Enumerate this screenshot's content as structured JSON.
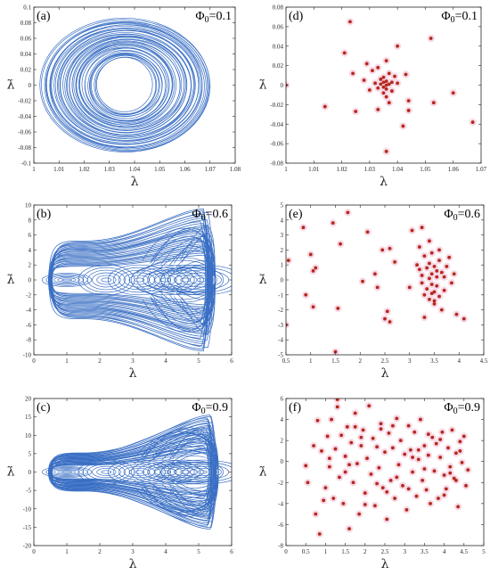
{
  "chart_data": [
    {
      "panel": "(a)",
      "type": "line",
      "annotation": "Φ0=0.1",
      "annotation_parts": {
        "sym": "Φ",
        "sub": "0",
        "val": "=0.1"
      },
      "xlabel": "λ",
      "ylabel": "λ̇",
      "xlim": [
        1,
        1.08
      ],
      "ylim": [
        -0.1,
        0.1
      ],
      "xticks": [
        "1",
        "1.01",
        "1.02",
        "1.03",
        "1.04",
        "1.05",
        "1.06",
        "1.07",
        "1.08"
      ],
      "yticks": [
        "-0.1",
        "-0.08",
        "-0.06",
        "-0.04",
        "-0.02",
        "0",
        "0.02",
        "0.04",
        "0.06",
        "0.08",
        "0.1"
      ],
      "series": [
        {
          "color": "#3a6fc4",
          "shape": "ellipse-family",
          "center": [
            1.0365,
            0.0
          ],
          "x_range": [
            1.003,
            1.071
          ],
          "y_range": [
            -0.085,
            0.085
          ],
          "x_hole": [
            1.025,
            1.048
          ],
          "y_hole": [
            -0.035,
            0.035
          ]
        }
      ]
    },
    {
      "panel": "(b)",
      "type": "line",
      "annotation": "Φ0=0.6",
      "annotation_parts": {
        "sym": "Φ",
        "sub": "0",
        "val": "=0.6"
      },
      "xlabel": "λ",
      "ylabel": "λ̇",
      "xlim": [
        0,
        6
      ],
      "ylim": [
        -10,
        10
      ],
      "xticks": [
        "0",
        "1",
        "2",
        "3",
        "4",
        "5",
        "6"
      ],
      "yticks": [
        "-10",
        "-8",
        "-6",
        "-4",
        "-2",
        "0",
        "2",
        "4",
        "6",
        "8",
        "10"
      ],
      "series": [
        {
          "color": "#3a6fc4",
          "shape": "bowtie",
          "x_range": [
            0.5,
            5.5
          ],
          "y_left": 5.2,
          "y_right": 9.5
        }
      ]
    },
    {
      "panel": "(c)",
      "type": "line",
      "annotation": "Φ0=0.9",
      "annotation_parts": {
        "sym": "Φ",
        "sub": "0",
        "val": "=0.9"
      },
      "xlabel": "λ",
      "ylabel": "λ̇",
      "xlim": [
        0,
        6
      ],
      "ylim": [
        -20,
        20
      ],
      "xticks": [
        "0",
        "1",
        "2",
        "3",
        "4",
        "5",
        "6"
      ],
      "yticks": [
        "-20",
        "-15",
        "-10",
        "-5",
        "0",
        "5",
        "10",
        "15",
        "20"
      ],
      "series": [
        {
          "color": "#3a6fc4",
          "shape": "bowtie",
          "x_range": [
            0.5,
            5.6
          ],
          "y_left": 5.2,
          "y_right": 15.5
        }
      ]
    },
    {
      "panel": "(d)",
      "type": "scatter",
      "annotation": "Φ0=0.1",
      "annotation_parts": {
        "sym": "Φ",
        "sub": "0",
        "val": "=0.1"
      },
      "xlabel": "λ",
      "ylabel": "λ̇",
      "xlim": [
        1,
        1.07
      ],
      "ylim": [
        -0.08,
        0.08
      ],
      "xticks": [
        "1",
        "1.01",
        "1.02",
        "1.03",
        "1.04",
        "1.05",
        "1.06",
        "1.07"
      ],
      "yticks": [
        "-0.08",
        "-0.06",
        "-0.04",
        "-0.02",
        "0",
        "0.02",
        "0.04",
        "0.06",
        "0.08"
      ],
      "series": [
        {
          "color": "#b5281d",
          "x": [
            1.0,
            1.014,
            1.021,
            1.023,
            1.024,
            1.025,
            1.028,
            1.03,
            1.031,
            1.032,
            1.033,
            1.033,
            1.034,
            1.034,
            1.035,
            1.035,
            1.035,
            1.036,
            1.036,
            1.036,
            1.036,
            1.037,
            1.037,
            1.037,
            1.038,
            1.038,
            1.039,
            1.04,
            1.042,
            1.043,
            1.044,
            1.044,
            1.036,
            1.036,
            1.035,
            1.052,
            1.053,
            1.06,
            1.067,
            1.029,
            1.033,
            1.04
          ],
          "y": [
            0.0,
            -0.022,
            0.033,
            0.065,
            0.012,
            -0.027,
            0.005,
            -0.005,
            0.015,
            0.002,
            -0.003,
            0.018,
            0.001,
            0.006,
            -0.002,
            0.003,
            0.008,
            0.0,
            0.004,
            -0.004,
            -0.012,
            0.001,
            0.012,
            -0.018,
            0.003,
            -0.006,
            0.009,
            0.04,
            -0.042,
            0.011,
            -0.026,
            -0.016,
            -0.068,
            0.025,
            -0.008,
            0.048,
            -0.018,
            -0.008,
            -0.038,
            0.022,
            -0.025,
            0.002
          ]
        }
      ]
    },
    {
      "panel": "(e)",
      "type": "scatter",
      "annotation": "Φ0=0.6",
      "annotation_parts": {
        "sym": "Φ",
        "sub": "0",
        "val": "=0.6"
      },
      "xlabel": "λ",
      "ylabel": "λ̇",
      "xlim": [
        0.5,
        4.5
      ],
      "ylim": [
        -5,
        5
      ],
      "xticks": [
        "0.5",
        "1",
        "1.5",
        "2",
        "2.5",
        "3",
        "3.5",
        "4",
        "4.5"
      ],
      "yticks": [
        "-5",
        "-4",
        "-3",
        "-2",
        "-1",
        "0",
        "1",
        "2",
        "3",
        "4",
        "5"
      ],
      "series": [
        {
          "color": "#b5281d",
          "x": [
            0.5,
            0.55,
            0.85,
            0.9,
            1.0,
            1.05,
            1.05,
            1.1,
            1.45,
            1.5,
            1.55,
            1.6,
            1.75,
            2.05,
            2.15,
            2.3,
            2.35,
            2.45,
            2.5,
            2.55,
            2.6,
            2.6,
            2.7,
            3.0,
            3.05,
            3.15,
            3.2,
            3.25,
            3.25,
            3.3,
            3.3,
            3.35,
            3.35,
            3.4,
            3.4,
            3.4,
            3.45,
            3.45,
            3.45,
            3.5,
            3.5,
            3.5,
            3.55,
            3.55,
            3.55,
            3.6,
            3.6,
            3.65,
            3.65,
            3.7,
            3.7,
            3.75,
            3.8,
            3.85,
            3.9,
            3.95,
            4.1,
            3.25,
            3.3,
            3.4,
            3.5,
            3.6,
            3.2,
            3.45
          ],
          "y": [
            -3.0,
            1.3,
            3.5,
            -1.0,
            1.7,
            0.6,
            -1.8,
            0.8,
            3.8,
            -4.8,
            -1.9,
            2.4,
            4.5,
            -0.1,
            3.2,
            0.4,
            -0.5,
            2.0,
            -2.6,
            -2.1,
            2.1,
            -2.8,
            1.2,
            -0.5,
            3.3,
            1.0,
            2.2,
            -0.2,
            0.3,
            1.6,
            -1.0,
            0.8,
            -0.6,
            0.1,
            1.1,
            -1.3,
            0.4,
            -0.3,
            1.8,
            0.9,
            -0.8,
            -1.6,
            0.2,
            0.6,
            -0.4,
            1.3,
            -1.1,
            0.5,
            -2.0,
            0.2,
            -0.7,
            0.9,
            1.5,
            -0.2,
            0.4,
            -2.3,
            -2.6,
            3.5,
            -2.5,
            2.6,
            -1.4,
            2.0,
            0.7,
            -0.9
          ]
        }
      ]
    },
    {
      "panel": "(f)",
      "type": "scatter",
      "annotation": "Φ0=0.9",
      "annotation_parts": {
        "sym": "Φ",
        "sub": "0",
        "val": "=0.9"
      },
      "xlabel": "λ",
      "ylabel": "λ̇",
      "xlim": [
        0,
        5
      ],
      "ylim": [
        -8,
        6
      ],
      "xticks": [
        "0",
        "0.5",
        "1",
        "1.5",
        "2",
        "2.5",
        "3",
        "3.5",
        "4",
        "4.5",
        "5"
      ],
      "yticks": [
        "-8",
        "-6",
        "-4",
        "-2",
        "0",
        "2",
        "4",
        "6"
      ],
      "series": [
        {
          "color": "#b5281d",
          "x": [
            0.5,
            0.55,
            0.7,
            0.75,
            0.8,
            0.85,
            0.9,
            1.0,
            1.05,
            1.1,
            1.15,
            1.2,
            1.25,
            1.3,
            1.35,
            1.4,
            1.45,
            1.5,
            1.55,
            1.6,
            1.65,
            1.7,
            1.75,
            1.8,
            1.85,
            1.9,
            1.95,
            2.0,
            2.05,
            2.1,
            2.15,
            2.2,
            2.25,
            2.3,
            2.35,
            2.4,
            2.45,
            2.5,
            2.55,
            2.6,
            2.65,
            2.7,
            2.75,
            2.8,
            2.85,
            2.9,
            2.95,
            3.0,
            3.05,
            3.1,
            3.15,
            3.2,
            3.25,
            3.3,
            3.35,
            3.4,
            3.45,
            3.5,
            3.55,
            3.6,
            3.65,
            3.7,
            3.75,
            3.8,
            3.85,
            3.9,
            3.95,
            4.0,
            4.05,
            4.1,
            4.15,
            4.2,
            4.25,
            4.3,
            4.35,
            4.4,
            4.45,
            4.5,
            4.55,
            4.6,
            1.3,
            1.6,
            2.0,
            2.4,
            2.8,
            3.2,
            3.6,
            4.0,
            4.4,
            1.1,
            1.5,
            1.9,
            2.3,
            2.7,
            3.1,
            3.5,
            3.9,
            4.3,
            0.95,
            1.75,
            2.55,
            3.35,
            4.15
          ],
          "y": [
            -0.4,
            -2.0,
            1.5,
            -5.0,
            3.9,
            -6.9,
            1.0,
            -2.5,
            2.4,
            -0.5,
            4.0,
            -3.5,
            1.2,
            5.9,
            -1.5,
            2.5,
            -4.0,
            0.5,
            3.3,
            -6.4,
            1.8,
            -2.0,
            4.6,
            -0.2,
            -5.0,
            1.5,
            3.0,
            -3.0,
            0.3,
            5.3,
            -1.2,
            2.2,
            -4.2,
            1.4,
            -0.6,
            3.6,
            -2.5,
            0.9,
            -5.5,
            2.7,
            -1.8,
            1.3,
            -3.5,
            4.1,
            -0.3,
            2.0,
            -2.3,
            0.7,
            -4.6,
            3.4,
            1.1,
            -1.0,
            2.8,
            -3.3,
            0.2,
            4.0,
            -1.8,
            1.5,
            -2.7,
            0.6,
            -4.0,
            2.3,
            -0.9,
            1.7,
            -3.5,
            0.4,
            2.8,
            -1.3,
            -2.6,
            1.3,
            -0.5,
            3.0,
            -1.6,
            0.8,
            -4.3,
            1.9,
            -0.1,
            2.4,
            -2.3,
            -0.8,
            5.2,
            -0.3,
            -4.1,
            3.1,
            -1.5,
            0.4,
            2.6,
            -3.2,
            1.0,
            0.3,
            -1.0,
            2.3,
            -2.1,
            3.4,
            -2.6,
            -0.7,
            2.1,
            -1.8,
            -3.7,
            3.3,
            -2.9,
            1.1,
            -1.1
          ]
        }
      ]
    }
  ]
}
